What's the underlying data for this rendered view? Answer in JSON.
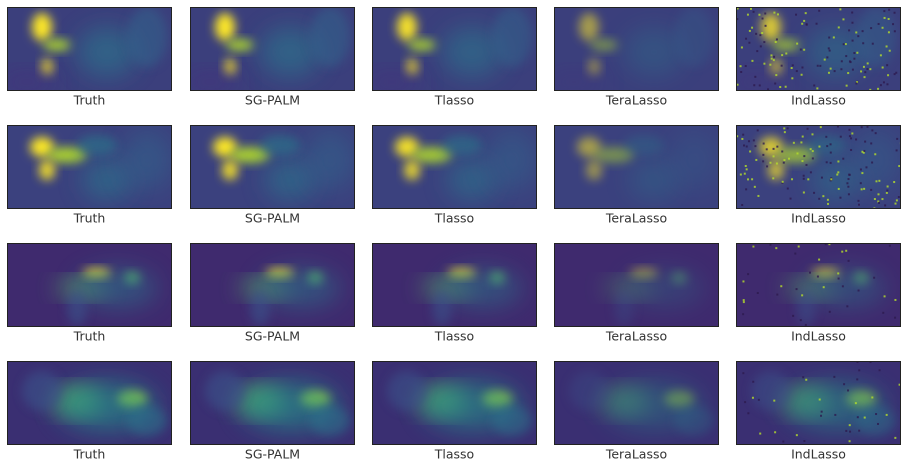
{
  "rows": [
    {
      "panels": [
        "Truth",
        "SG-PALM",
        "Tlasso",
        "TeraLasso",
        "IndLasso"
      ]
    },
    {
      "panels": [
        "Truth",
        "SG-PALM",
        "Tlasso",
        "TeraLasso",
        "IndLasso"
      ]
    },
    {
      "panels": [
        "Truth",
        "SG-PALM",
        "Tlasso",
        "TeraLasso",
        "IndLasso"
      ]
    },
    {
      "panels": [
        "Truth",
        "SG-PALM",
        "Tlasso",
        "TeraLasso",
        "IndLasso"
      ]
    }
  ]
}
